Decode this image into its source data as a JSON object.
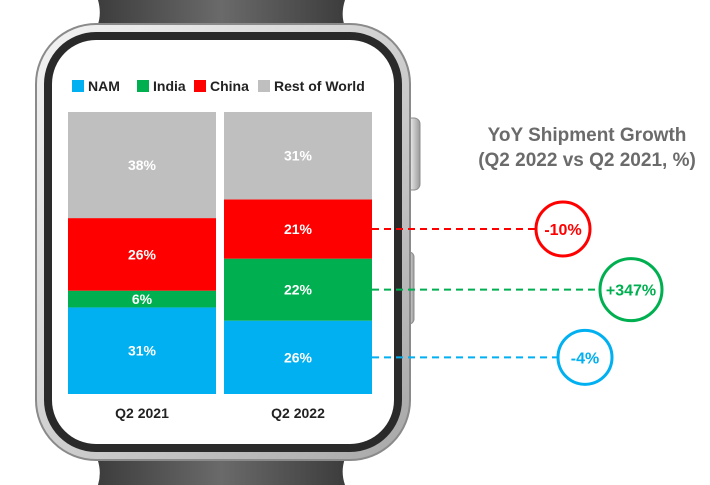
{
  "chart_data": {
    "type": "bar",
    "stacked": true,
    "categories": [
      "Q2 2021",
      "Q2 2022"
    ],
    "series": [
      {
        "name": "NAM",
        "color": "#00b0f0",
        "values": [
          31,
          26
        ],
        "labels": [
          "31%",
          "26%"
        ]
      },
      {
        "name": "India",
        "color": "#00b050",
        "values": [
          6,
          22
        ],
        "labels": [
          "6%",
          "22%"
        ]
      },
      {
        "name": "China",
        "color": "#ff0000",
        "values": [
          26,
          21
        ],
        "labels": [
          "26%",
          "21%"
        ]
      },
      {
        "name": "Rest of World",
        "color": "#bfbfbf",
        "values": [
          38,
          31
        ],
        "labels": [
          "38%",
          "31%"
        ]
      }
    ],
    "ylim": [
      0,
      100
    ],
    "legend_position": "top",
    "growth": {
      "title_line1": "YoY Shipment Growth",
      "title_line2": "(Q2 2022 vs Q2 2021, %)",
      "items": [
        {
          "series": "China",
          "label": "-10%",
          "value": -10,
          "color": "#ff0000"
        },
        {
          "series": "India",
          "label": "+347%",
          "value": 347,
          "color": "#00b050"
        },
        {
          "series": "NAM",
          "label": "-4%",
          "value": -4,
          "color": "#00b0f0"
        }
      ]
    }
  }
}
